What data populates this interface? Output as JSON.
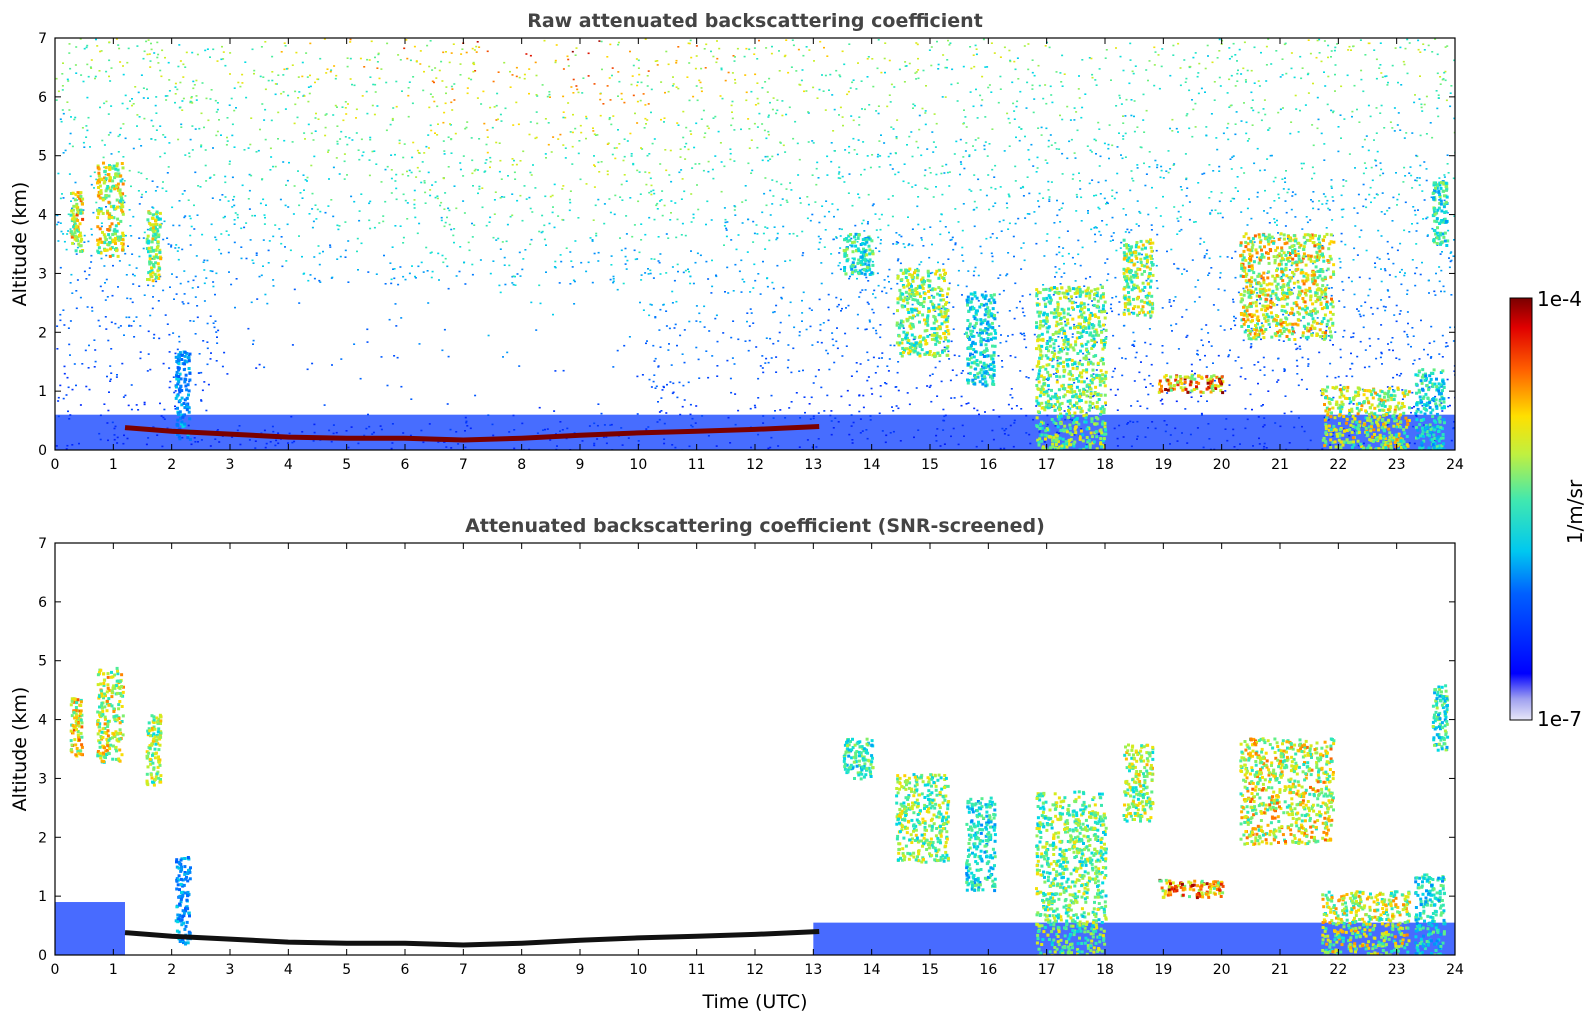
{
  "chart_data": {
    "type": "heatmap",
    "colormap": "jet",
    "colorbar": {
      "label": "1/m/sr",
      "max_label": "1e-4",
      "min_label": "1e-7",
      "range": [
        1e-07,
        0.0001
      ],
      "scale": "log",
      "placement": "right"
    },
    "xlabel": "Time (UTC)",
    "ylabel": "Altitude (km)",
    "xlim": [
      0,
      24
    ],
    "ylim": [
      0,
      7
    ],
    "xticks": [
      "0",
      "1",
      "2",
      "3",
      "4",
      "5",
      "6",
      "7",
      "8",
      "9",
      "10",
      "11",
      "12",
      "13",
      "14",
      "15",
      "16",
      "17",
      "18",
      "19",
      "20",
      "21",
      "22",
      "23",
      "24"
    ],
    "yticks": [
      "0",
      "1",
      "2",
      "3",
      "4",
      "5",
      "6",
      "7"
    ],
    "panels": [
      {
        "title": "Raw attenuated backscattering coefficient",
        "screened": false,
        "show_xlabel": false
      },
      {
        "title": "Attenuated backscattering coefficient (SNR-screened)",
        "screened": true,
        "show_xlabel": true
      }
    ],
    "features": {
      "boundary_layer_top": {
        "x": [
          1.2,
          2,
          3,
          4,
          5,
          6,
          7,
          8,
          9,
          10,
          11,
          12,
          13.1
        ],
        "y": [
          0.38,
          0.32,
          0.27,
          0.22,
          0.2,
          0.2,
          0.17,
          0.2,
          0.25,
          0.29,
          0.32,
          0.35,
          0.4
        ],
        "level": 1.0
      },
      "clouds": [
        {
          "x": [
            0.25,
            0.45
          ],
          "y": [
            3.4,
            4.4
          ],
          "level": 0.85
        },
        {
          "x": [
            0.7,
            1.15
          ],
          "y": [
            3.3,
            4.9
          ],
          "level": 0.8
        },
        {
          "x": [
            1.55,
            1.8
          ],
          "y": [
            2.9,
            4.1
          ],
          "level": 0.75
        },
        {
          "x": [
            2.05,
            2.3
          ],
          "y": [
            0.2,
            1.7
          ],
          "level": 0.4
        },
        {
          "x": [
            13.5,
            14.0
          ],
          "y": [
            3.0,
            3.7
          ],
          "level": 0.6
        },
        {
          "x": [
            14.4,
            15.3
          ],
          "y": [
            1.6,
            3.1
          ],
          "level": 0.72
        },
        {
          "x": [
            15.6,
            16.1
          ],
          "y": [
            1.1,
            2.7
          ],
          "level": 0.55
        },
        {
          "x": [
            16.8,
            18.0
          ],
          "y": [
            0.0,
            2.8
          ],
          "level": 0.7
        },
        {
          "x": [
            18.3,
            18.8
          ],
          "y": [
            2.3,
            3.6
          ],
          "level": 0.75
        },
        {
          "x": [
            18.9,
            20.0
          ],
          "y": [
            1.0,
            1.3
          ],
          "level": 0.95
        },
        {
          "x": [
            20.3,
            21.9
          ],
          "y": [
            1.9,
            3.7
          ],
          "level": 0.82
        },
        {
          "x": [
            21.7,
            23.2
          ],
          "y": [
            0.0,
            1.1
          ],
          "level": 0.78
        },
        {
          "x": [
            23.3,
            23.8
          ],
          "y": [
            0.0,
            1.4
          ],
          "level": 0.55
        },
        {
          "x": [
            23.6,
            23.85
          ],
          "y": [
            3.5,
            4.6
          ],
          "level": 0.6
        }
      ]
    }
  }
}
